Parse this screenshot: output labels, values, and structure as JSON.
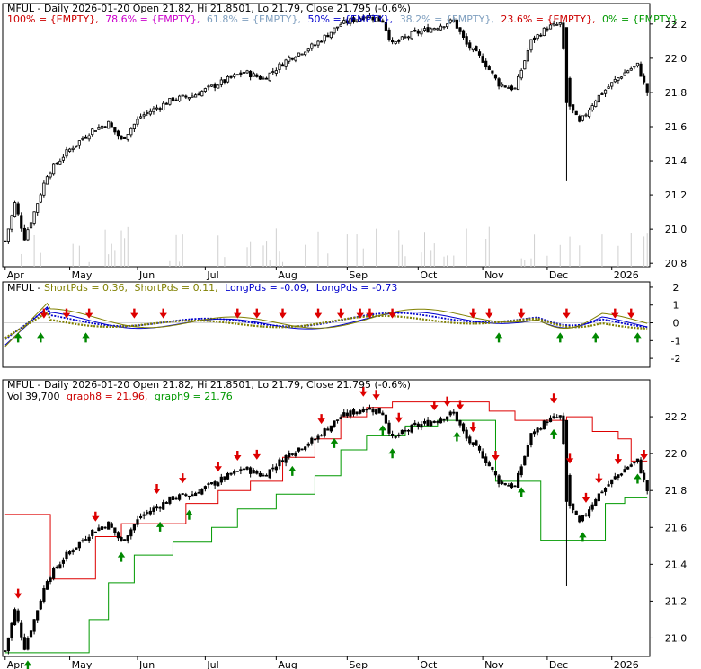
{
  "panel1": {
    "title": "MFUL - Daily 2026-01-20 Open 21.82, Hi 21.8501, Lo 21.79, Close 21.795 (-0.6%)",
    "fib": [
      {
        "text": "100% = {EMPTY},",
        "color": "#cc0000"
      },
      {
        "text": "78.6% = {EMPTY},",
        "color": "#cc00cc"
      },
      {
        "text": "61.8% = {EMPTY},",
        "color": "#7f9fbf"
      },
      {
        "text": "50% = {EMPTY},",
        "color": "#0000cc"
      },
      {
        "text": "38.2% = {EMPTY},",
        "color": "#7f9fbf"
      },
      {
        "text": "23.6% = {EMPTY},",
        "color": "#cc0000"
      },
      {
        "text": "0% = {EMPTY}",
        "color": "#009900"
      }
    ],
    "y_ticks": [
      "22.2",
      "22.0",
      "21.8",
      "21.6",
      "21.4",
      "21.2",
      "21.0",
      "20.8"
    ],
    "ylim": [
      20.78,
      22.32
    ]
  },
  "panel2": {
    "legend": [
      {
        "text": "MFUL - ",
        "color": "#000000"
      },
      {
        "text": "ShortPds = 0.36,",
        "color": "#808000"
      },
      {
        "text": "ShortPds = 0.11,",
        "color": "#808000"
      },
      {
        "text": "LongPds = -0.09,",
        "color": "#0000cc"
      },
      {
        "text": "LongPds = -0.73",
        "color": "#0000cc"
      }
    ],
    "y_ticks": [
      "2",
      "1",
      "0",
      "-1",
      "-2"
    ],
    "ylim": [
      -2.5,
      2.3
    ]
  },
  "panel3": {
    "title": "MFUL - Daily 2026-01-20 Open 21.82, Hi 21.8501, Lo 21.79, Close 21.795 (-0.6%)",
    "legend": [
      {
        "text": "Vol 39,700",
        "color": "#000000"
      },
      {
        "text": "graph8 = 21.96,",
        "color": "#cc0000"
      },
      {
        "text": "graph9 = 21.76",
        "color": "#009900"
      }
    ],
    "y_ticks": [
      "22.2",
      "22.0",
      "21.8",
      "21.6",
      "21.4",
      "21.2",
      "21.0"
    ],
    "ylim": [
      20.9,
      22.4
    ]
  },
  "x_labels": [
    "Apr",
    "May",
    "Jun",
    "Jul",
    "Aug",
    "Sep",
    "Oct",
    "Nov",
    "Dec",
    "2026"
  ],
  "chart_data": {
    "type": "line",
    "title": "MFUL - Daily 2026-01-20 Open 21.82, Hi 21.8501, Lo 21.79, Close 21.795 (-0.6%)",
    "categories": [
      "Apr",
      "May",
      "Jun",
      "Jul",
      "Aug",
      "Sep",
      "Oct",
      "Nov",
      "Dec",
      "2026"
    ],
    "series": [
      {
        "name": "Close",
        "values": [
          20.95,
          21.58,
          21.78,
          21.9,
          22.06,
          22.24,
          22.18,
          21.95,
          22.1,
          21.96
        ]
      },
      {
        "name": "graph8",
        "values": [
          21.67,
          21.62,
          21.8,
          21.93,
          22.08,
          22.25,
          22.28,
          22.23,
          22.18,
          21.96
        ]
      },
      {
        "name": "graph9",
        "values": [
          20.92,
          21.3,
          21.52,
          21.68,
          21.84,
          22.02,
          22.15,
          21.88,
          21.53,
          21.76
        ]
      }
    ],
    "ylim": [
      20.8,
      22.3
    ]
  }
}
